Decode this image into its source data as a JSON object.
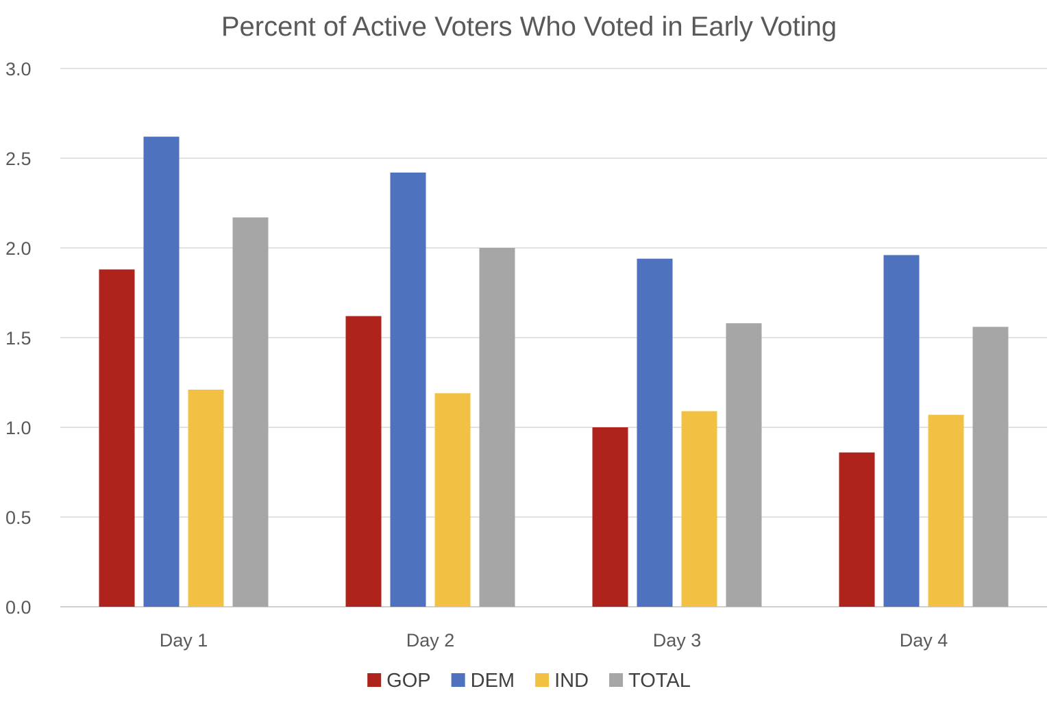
{
  "chart_data": {
    "type": "bar",
    "title": "Percent of Active Voters Who Voted in Early Voting",
    "xlabel": "",
    "ylabel": "",
    "categories": [
      "Day 1",
      "Day 2",
      "Day 3",
      "Day 4"
    ],
    "series": [
      {
        "name": "GOP",
        "color": "#ae231b",
        "values": [
          1.88,
          1.62,
          1.0,
          0.86
        ]
      },
      {
        "name": "DEM",
        "color": "#4e72bd",
        "values": [
          2.62,
          2.42,
          1.94,
          1.96
        ]
      },
      {
        "name": "IND",
        "color": "#f2c042",
        "values": [
          1.21,
          1.19,
          1.09,
          1.07
        ]
      },
      {
        "name": "TOTAL",
        "color": "#a6a6a6",
        "values": [
          2.17,
          2.0,
          1.58,
          1.56
        ]
      }
    ],
    "ylim": [
      0,
      3.0
    ],
    "yticks": [
      "0.0",
      "0.5",
      "1.0",
      "1.5",
      "2.0",
      "2.5",
      "3.0"
    ],
    "grid": true,
    "legend_position": "bottom"
  }
}
